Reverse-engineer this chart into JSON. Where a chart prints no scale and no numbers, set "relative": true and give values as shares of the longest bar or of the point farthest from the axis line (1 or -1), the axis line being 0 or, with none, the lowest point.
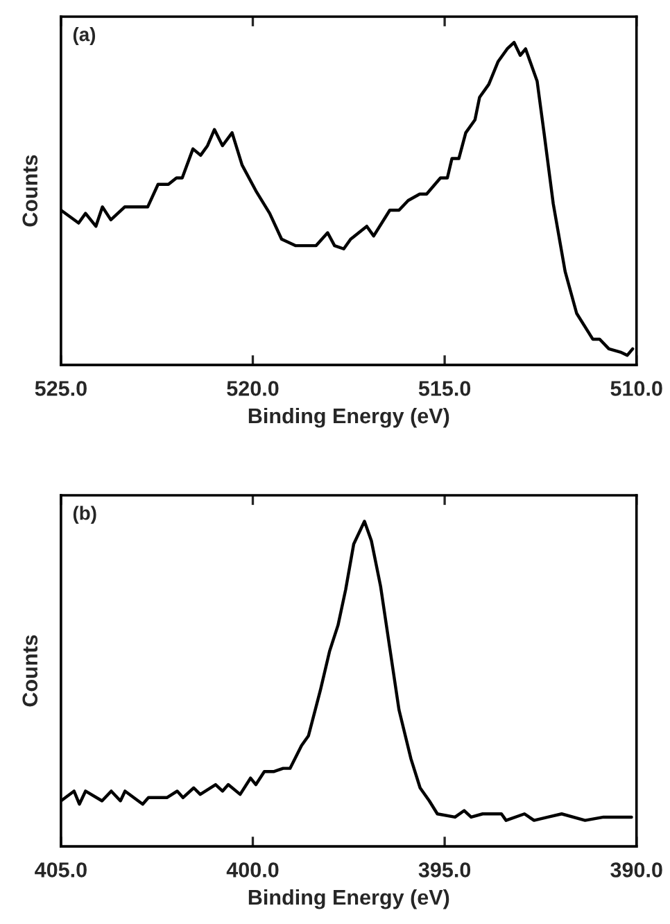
{
  "chart_data": [
    {
      "type": "line",
      "xlabel": "Binding Energy (eV)",
      "ylabel": "Counts",
      "annotations": [
        "(a)"
      ],
      "relative": true,
      "xlim": [
        525,
        510
      ],
      "xticks": [
        {
          "value": 525,
          "label": "525.0"
        },
        {
          "value": 520,
          "label": "520.0"
        },
        {
          "value": 515,
          "label": "515.0"
        },
        {
          "value": 510,
          "label": "510.0"
        }
      ],
      "tick_labels": "x",
      "grid": false,
      "legend": false,
      "series": [
        {
          "color": "#000000",
          "x": [
            525.0,
            524.54,
            524.36,
            524.09,
            523.92,
            523.7,
            523.34,
            522.74,
            522.47,
            522.2,
            521.99,
            521.84,
            521.56,
            521.36,
            521.18,
            521.0,
            520.79,
            520.54,
            520.28,
            519.92,
            519.56,
            519.25,
            518.89,
            518.35,
            518.05,
            517.87,
            517.63,
            517.45,
            517.03,
            516.85,
            516.43,
            516.19,
            515.95,
            515.65,
            515.47,
            515.11,
            514.93,
            514.81,
            514.63,
            514.45,
            514.21,
            514.09,
            513.85,
            513.61,
            513.37,
            513.19,
            513.03,
            512.89,
            512.59,
            512.41,
            512.17,
            511.86,
            511.56,
            511.14,
            510.96,
            510.72,
            510.42,
            510.24,
            510.1
          ],
          "values": [
            0.48,
            0.44,
            0.47,
            0.43,
            0.49,
            0.45,
            0.49,
            0.49,
            0.56,
            0.56,
            0.58,
            0.58,
            0.67,
            0.65,
            0.68,
            0.73,
            0.68,
            0.72,
            0.62,
            0.54,
            0.47,
            0.39,
            0.37,
            0.37,
            0.41,
            0.37,
            0.36,
            0.39,
            0.43,
            0.4,
            0.48,
            0.48,
            0.51,
            0.53,
            0.53,
            0.58,
            0.58,
            0.64,
            0.64,
            0.72,
            0.76,
            0.83,
            0.87,
            0.94,
            0.98,
            1.0,
            0.96,
            0.98,
            0.88,
            0.72,
            0.5,
            0.29,
            0.16,
            0.08,
            0.08,
            0.05,
            0.04,
            0.03,
            0.05
          ]
        }
      ]
    },
    {
      "type": "line",
      "xlabel": "Binding Energy (eV)",
      "ylabel": "Counts",
      "annotations": [
        "(b)"
      ],
      "relative": true,
      "xlim": [
        405,
        390
      ],
      "xticks": [
        {
          "value": 405,
          "label": "405.0"
        },
        {
          "value": 400,
          "label": "400.0"
        },
        {
          "value": 395,
          "label": "395.0"
        },
        {
          "value": 390,
          "label": "390.0"
        }
      ],
      "tick_labels": "x",
      "grid": false,
      "legend": false,
      "series": [
        {
          "color": "#000000",
          "x": [
            405.0,
            404.66,
            404.52,
            404.36,
            403.93,
            403.69,
            403.45,
            403.33,
            402.87,
            402.72,
            402.24,
            401.97,
            401.82,
            401.54,
            401.37,
            400.97,
            400.79,
            400.64,
            400.33,
            400.06,
            399.92,
            399.7,
            399.46,
            399.21,
            399.03,
            398.73,
            398.55,
            398.24,
            398.0,
            397.78,
            397.58,
            397.37,
            397.09,
            396.91,
            396.67,
            396.43,
            396.19,
            395.88,
            395.64,
            395.4,
            395.19,
            394.73,
            394.49,
            394.31,
            394.01,
            393.52,
            393.4,
            392.92,
            392.67,
            392.31,
            391.95,
            391.34,
            390.86,
            390.13
          ],
          "values": [
            0.14,
            0.17,
            0.13,
            0.17,
            0.14,
            0.17,
            0.14,
            0.17,
            0.13,
            0.15,
            0.15,
            0.17,
            0.15,
            0.18,
            0.16,
            0.19,
            0.17,
            0.19,
            0.16,
            0.21,
            0.19,
            0.23,
            0.23,
            0.24,
            0.24,
            0.31,
            0.34,
            0.48,
            0.6,
            0.68,
            0.79,
            0.93,
            1.0,
            0.94,
            0.8,
            0.61,
            0.42,
            0.27,
            0.18,
            0.14,
            0.1,
            0.09,
            0.11,
            0.09,
            0.1,
            0.1,
            0.08,
            0.1,
            0.08,
            0.09,
            0.1,
            0.08,
            0.09,
            0.09
          ]
        }
      ]
    }
  ]
}
